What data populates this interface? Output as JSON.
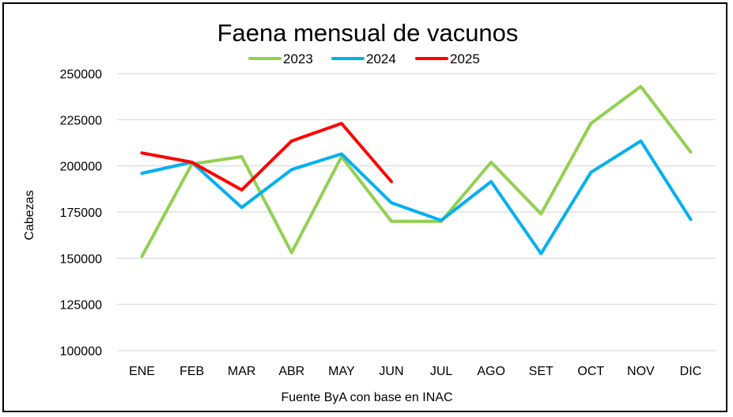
{
  "chart_data": {
    "type": "line",
    "title": "Faena mensual de vacunos",
    "xlabel": "Fuente ByA con base en INAC",
    "ylabel": "Cabezas",
    "categories": [
      "ENE",
      "FEB",
      "MAR",
      "ABR",
      "MAY",
      "JUN",
      "JUL",
      "AGO",
      "SET",
      "OCT",
      "NOV",
      "DIC"
    ],
    "ylim": [
      100000,
      250000
    ],
    "yticks": [
      100000,
      125000,
      150000,
      175000,
      200000,
      225000,
      250000
    ],
    "ytick_labels": [
      "100000",
      "125000",
      "150000",
      "175000",
      "200000",
      "225000",
      "250000"
    ],
    "grid": true,
    "legend_position": "top",
    "series": [
      {
        "name": "2023",
        "color": "#92d050",
        "values": [
          151000,
          201000,
          205000,
          153000,
          205000,
          170000,
          170000,
          202000,
          174000,
          223000,
          243000,
          207500
        ]
      },
      {
        "name": "2024",
        "color": "#00b0f0",
        "values": [
          196000,
          202000,
          177500,
          198000,
          206500,
          180000,
          170500,
          191500,
          152500,
          196500,
          213500,
          171000
        ]
      },
      {
        "name": "2025",
        "color": "#ff0000",
        "values": [
          207000,
          202000,
          187000,
          213500,
          223000,
          191500,
          null,
          null,
          null,
          null,
          null,
          null
        ]
      }
    ]
  }
}
